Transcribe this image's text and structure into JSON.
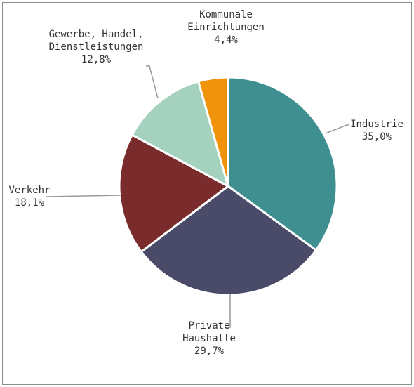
{
  "chart_data": {
    "type": "pie",
    "categories": [
      "Industrie",
      "Private\nHaushalte",
      "Verkehr",
      "Gewerbe, Handel,\nDienstleistungen",
      "Kommunale\nEinrichtungen"
    ],
    "values": [
      35.0,
      29.7,
      18.1,
      12.8,
      4.4
    ],
    "value_labels": [
      "35,0%",
      "29,7%",
      "18,1%",
      "12,8%",
      "4,4%"
    ],
    "colors": [
      "#3f8f91",
      "#4a4b68",
      "#7a2b2c",
      "#a4d2bf",
      "#f0930b"
    ]
  }
}
